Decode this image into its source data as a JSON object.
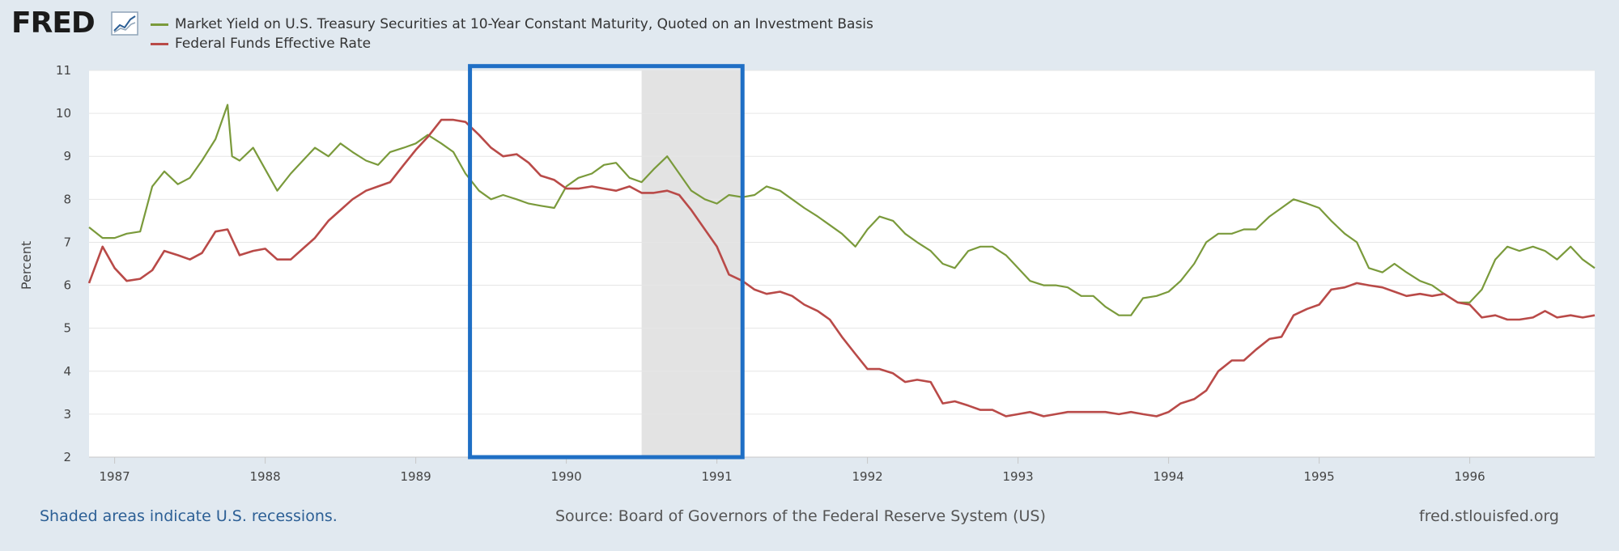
{
  "header": {
    "logo_text": "FRED",
    "logo_icon": "line-chart-icon"
  },
  "legend": [
    {
      "label": "Market Yield on U.S. Treasury Securities at 10-Year Constant Maturity, Quoted on an Investment Basis",
      "color": "#7a9a3b"
    },
    {
      "label": "Federal Funds Effective Rate",
      "color": "#b94a48"
    }
  ],
  "footer": {
    "recessions_note": "Shaded areas indicate U.S. recessions.",
    "source": "Source: Board of Governors of the Federal Reserve System (US)",
    "site": "fred.stlouisfed.org"
  },
  "annotation": {
    "highlight_box_color": "#1f6fc5"
  },
  "chart_data": {
    "type": "line",
    "ylabel": "Percent",
    "xlim": [
      1986.83,
      1996.83
    ],
    "ylim": [
      2,
      11
    ],
    "y_ticks": [
      2,
      3,
      4,
      5,
      6,
      7,
      8,
      9,
      10,
      11
    ],
    "x_ticks": [
      "1987",
      "1988",
      "1989",
      "1990",
      "1991",
      "1992",
      "1993",
      "1994",
      "1995",
      "1996"
    ],
    "grid": true,
    "recessions": [
      [
        1990.5,
        1991.17
      ]
    ],
    "highlight": {
      "x_range": [
        1989.36,
        1991.17
      ],
      "y_range": [
        2,
        11.1
      ]
    },
    "series": [
      {
        "name": "Market Yield on U.S. Treasury Securities at 10-Year Constant Maturity, Quoted on an Investment Basis",
        "color": "#7a9a3b",
        "x": [
          1986.83,
          1986.92,
          1987.0,
          1987.08,
          1987.17,
          1987.25,
          1987.33,
          1987.42,
          1987.5,
          1987.58,
          1987.67,
          1987.75,
          1987.78,
          1987.83,
          1987.92,
          1988.0,
          1988.08,
          1988.17,
          1988.25,
          1988.33,
          1988.42,
          1988.5,
          1988.58,
          1988.67,
          1988.75,
          1988.83,
          1988.92,
          1989.0,
          1989.08,
          1989.17,
          1989.25,
          1989.33,
          1989.42,
          1989.5,
          1989.58,
          1989.67,
          1989.75,
          1989.83,
          1989.92,
          1990.0,
          1990.08,
          1990.17,
          1990.25,
          1990.33,
          1990.42,
          1990.5,
          1990.58,
          1990.67,
          1990.75,
          1990.83,
          1990.92,
          1991.0,
          1991.08,
          1991.17,
          1991.25,
          1991.33,
          1991.42,
          1991.5,
          1991.58,
          1991.67,
          1991.75,
          1991.83,
          1991.92,
          1992.0,
          1992.08,
          1992.17,
          1992.25,
          1992.33,
          1992.42,
          1992.5,
          1992.58,
          1992.67,
          1992.75,
          1992.83,
          1992.92,
          1993.0,
          1993.08,
          1993.17,
          1993.25,
          1993.33,
          1993.42,
          1993.5,
          1993.58,
          1993.67,
          1993.75,
          1993.83,
          1993.92,
          1994.0,
          1994.08,
          1994.17,
          1994.25,
          1994.33,
          1994.42,
          1994.5,
          1994.58,
          1994.67,
          1994.75,
          1994.83,
          1994.92,
          1995.0,
          1995.08,
          1995.17,
          1995.25,
          1995.33,
          1995.42,
          1995.5,
          1995.58,
          1995.67,
          1995.75,
          1995.83,
          1995.92,
          1996.0,
          1996.08,
          1996.17,
          1996.25,
          1996.33,
          1996.42,
          1996.5,
          1996.58,
          1996.67,
          1996.75,
          1996.83
        ],
        "y": [
          7.35,
          7.1,
          7.1,
          7.2,
          7.25,
          8.3,
          8.65,
          8.35,
          8.5,
          8.9,
          9.4,
          10.2,
          9.0,
          8.9,
          9.2,
          8.7,
          8.2,
          8.6,
          8.9,
          9.2,
          9.0,
          9.3,
          9.1,
          8.9,
          8.8,
          9.1,
          9.2,
          9.3,
          9.5,
          9.3,
          9.1,
          8.6,
          8.2,
          8.0,
          8.1,
          8.0,
          7.9,
          7.85,
          7.8,
          8.3,
          8.5,
          8.6,
          8.8,
          8.85,
          8.5,
          8.4,
          8.7,
          9.0,
          8.6,
          8.2,
          8.0,
          7.9,
          8.1,
          8.05,
          8.1,
          8.3,
          8.2,
          8.0,
          7.8,
          7.6,
          7.4,
          7.2,
          6.9,
          7.3,
          7.6,
          7.5,
          7.2,
          7.0,
          6.8,
          6.5,
          6.4,
          6.8,
          6.9,
          6.9,
          6.7,
          6.4,
          6.1,
          6.0,
          6.0,
          5.95,
          5.75,
          5.75,
          5.5,
          5.3,
          5.3,
          5.7,
          5.75,
          5.85,
          6.1,
          6.5,
          7.0,
          7.2,
          7.2,
          7.3,
          7.3,
          7.6,
          7.8,
          8.0,
          7.9,
          7.8,
          7.5,
          7.2,
          7.0,
          6.4,
          6.3,
          6.5,
          6.3,
          6.1,
          6.0,
          5.8,
          5.6,
          5.6,
          5.9,
          6.6,
          6.9,
          6.8,
          6.9,
          6.8,
          6.6,
          6.9,
          6.6,
          6.4
        ]
      },
      {
        "name": "Federal Funds Effective Rate",
        "color": "#b94a48",
        "x": [
          1986.83,
          1986.92,
          1987.0,
          1987.08,
          1987.17,
          1987.25,
          1987.33,
          1987.42,
          1987.5,
          1987.58,
          1987.67,
          1987.75,
          1987.83,
          1987.92,
          1988.0,
          1988.08,
          1988.17,
          1988.25,
          1988.33,
          1988.42,
          1988.5,
          1988.58,
          1988.67,
          1988.75,
          1988.83,
          1988.92,
          1989.0,
          1989.08,
          1989.17,
          1989.25,
          1989.33,
          1989.42,
          1989.5,
          1989.58,
          1989.67,
          1989.75,
          1989.83,
          1989.92,
          1990.0,
          1990.08,
          1990.17,
          1990.25,
          1990.33,
          1990.42,
          1990.5,
          1990.58,
          1990.67,
          1990.75,
          1990.83,
          1990.92,
          1991.0,
          1991.08,
          1991.17,
          1991.25,
          1991.33,
          1991.42,
          1991.5,
          1991.58,
          1991.67,
          1991.75,
          1991.83,
          1991.92,
          1992.0,
          1992.08,
          1992.17,
          1992.25,
          1992.33,
          1992.42,
          1992.5,
          1992.58,
          1992.67,
          1992.75,
          1992.83,
          1992.92,
          1993.0,
          1993.08,
          1993.17,
          1993.25,
          1993.33,
          1993.42,
          1993.5,
          1993.58,
          1993.67,
          1993.75,
          1993.83,
          1993.92,
          1994.0,
          1994.08,
          1994.17,
          1994.25,
          1994.33,
          1994.42,
          1994.5,
          1994.58,
          1994.67,
          1994.75,
          1994.83,
          1994.92,
          1995.0,
          1995.08,
          1995.17,
          1995.25,
          1995.33,
          1995.42,
          1995.5,
          1995.58,
          1995.67,
          1995.75,
          1995.83,
          1995.92,
          1996.0,
          1996.08,
          1996.17,
          1996.25,
          1996.33,
          1996.42,
          1996.5,
          1996.58,
          1996.67,
          1996.75,
          1996.83
        ],
        "y": [
          6.05,
          6.9,
          6.4,
          6.1,
          6.15,
          6.35,
          6.8,
          6.7,
          6.6,
          6.75,
          7.25,
          7.3,
          6.7,
          6.8,
          6.85,
          6.6,
          6.6,
          6.85,
          7.1,
          7.5,
          7.75,
          8.0,
          8.2,
          8.3,
          8.4,
          8.8,
          9.15,
          9.45,
          9.85,
          9.85,
          9.8,
          9.5,
          9.2,
          9.0,
          9.05,
          8.85,
          8.55,
          8.45,
          8.25,
          8.25,
          8.3,
          8.25,
          8.2,
          8.3,
          8.15,
          8.15,
          8.2,
          8.1,
          7.75,
          7.3,
          6.9,
          6.25,
          6.1,
          5.9,
          5.8,
          5.85,
          5.75,
          5.55,
          5.4,
          5.2,
          4.8,
          4.4,
          4.05,
          4.05,
          3.95,
          3.75,
          3.8,
          3.75,
          3.25,
          3.3,
          3.2,
          3.1,
          3.1,
          2.95,
          3.0,
          3.05,
          2.95,
          3.0,
          3.05,
          3.05,
          3.05,
          3.05,
          3.0,
          3.05,
          3.0,
          2.95,
          3.05,
          3.25,
          3.35,
          3.55,
          4.0,
          4.25,
          4.25,
          4.5,
          4.75,
          4.8,
          5.3,
          5.45,
          5.55,
          5.9,
          5.95,
          6.05,
          6.0,
          5.95,
          5.85,
          5.75,
          5.8,
          5.75,
          5.8,
          5.6,
          5.55,
          5.25,
          5.3,
          5.2,
          5.2,
          5.25,
          5.4,
          5.25,
          5.3,
          5.25,
          5.3
        ]
      }
    ]
  }
}
